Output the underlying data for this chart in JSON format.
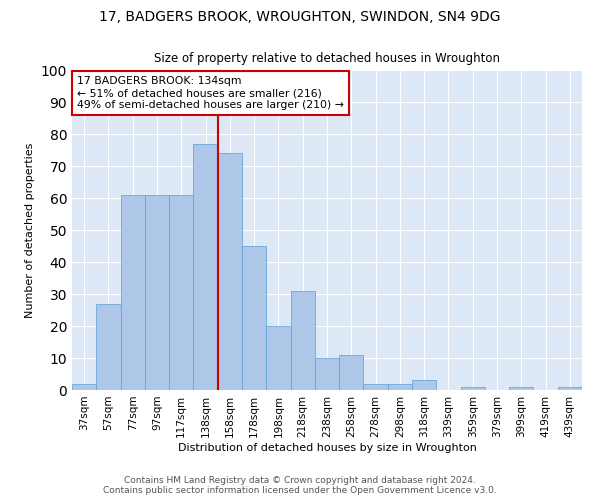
{
  "title1": "17, BADGERS BROOK, WROUGHTON, SWINDON, SN4 9DG",
  "title2": "Size of property relative to detached houses in Wroughton",
  "xlabel": "Distribution of detached houses by size in Wroughton",
  "ylabel": "Number of detached properties",
  "bar_labels": [
    "37sqm",
    "57sqm",
    "77sqm",
    "97sqm",
    "117sqm",
    "138sqm",
    "158sqm",
    "178sqm",
    "198sqm",
    "218sqm",
    "238sqm",
    "258sqm",
    "278sqm",
    "298sqm",
    "318sqm",
    "339sqm",
    "359sqm",
    "379sqm",
    "399sqm",
    "419sqm",
    "439sqm"
  ],
  "bar_values": [
    2,
    27,
    61,
    61,
    61,
    77,
    74,
    45,
    20,
    31,
    10,
    11,
    2,
    2,
    3,
    0,
    1,
    0,
    1,
    0,
    1
  ],
  "bar_color": "#aec6e8",
  "bar_edge_color": "#5a9fd4",
  "vline_x": 5.5,
  "vline_color": "#cc0000",
  "annotation_text": "17 BADGERS BROOK: 134sqm\n← 51% of detached houses are smaller (216)\n49% of semi-detached houses are larger (210) →",
  "annotation_box_color": "#ffffff",
  "annotation_box_edge_color": "#cc0000",
  "ylim": [
    0,
    100
  ],
  "yticks": [
    0,
    10,
    20,
    30,
    40,
    50,
    60,
    70,
    80,
    90,
    100
  ],
  "bg_color": "#dce8f5",
  "footer1": "Contains HM Land Registry data © Crown copyright and database right 2024.",
  "footer2": "Contains public sector information licensed under the Open Government Licence v3.0."
}
